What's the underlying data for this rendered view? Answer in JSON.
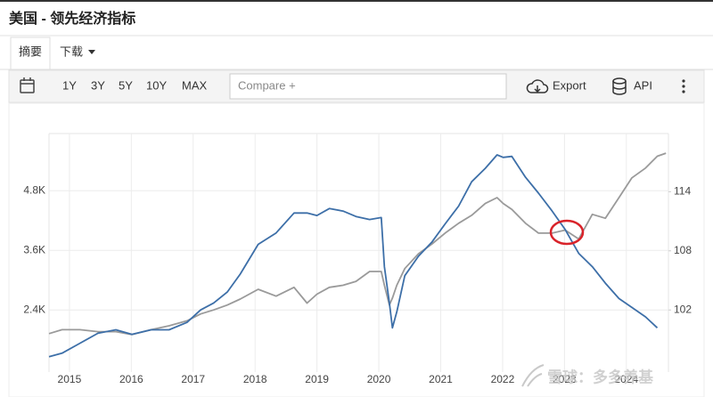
{
  "header": {
    "title": "美国 - 领先经济指标"
  },
  "tabs": [
    "摘要",
    "下载"
  ],
  "toolbar": {
    "ranges": [
      "1Y",
      "3Y",
      "5Y",
      "10Y",
      "MAX"
    ],
    "compare": "Compare +",
    "export": "Export",
    "api": "API"
  },
  "watermark": "雪球：多多养基",
  "chart_data": {
    "type": "line",
    "x": [
      2014.67,
      2014.88,
      2015.17,
      2015.46,
      2015.75,
      2016.01,
      2016.32,
      2016.61,
      2016.9,
      2017.12,
      2017.33,
      2017.55,
      2017.76,
      2018.05,
      2018.34,
      2018.63,
      2018.84,
      2019.0,
      2019.2,
      2019.42,
      2019.63,
      2019.85,
      2020.04,
      2020.09,
      2020.17,
      2020.22,
      2020.29,
      2020.42,
      2020.64,
      2020.86,
      2021.07,
      2021.29,
      2021.5,
      2021.72,
      2021.91,
      2022.01,
      2022.15,
      2022.37,
      2022.58,
      2022.8,
      2023.01,
      2023.23,
      2023.45,
      2023.66,
      2023.88,
      2024.09,
      2024.31,
      2024.5,
      2024.64
    ],
    "series": [
      {
        "color": "#3d6fa8",
        "values": [
          1460,
          1530,
          1730,
          1930,
          2000,
          1910,
          2000,
          2000,
          2150,
          2400,
          2540,
          2760,
          3120,
          3720,
          3950,
          4350,
          4350,
          4300,
          4440,
          4390,
          4280,
          4220,
          4260,
          3270,
          2540,
          2040,
          2360,
          3090,
          3480,
          3770,
          4130,
          4490,
          4980,
          5250,
          5520,
          5470,
          5490,
          5070,
          4750,
          4390,
          4020,
          3540,
          3270,
          2940,
          2630,
          2450,
          2260,
          2040,
          null
        ]
      },
      {
        "color": "#9a9a9a",
        "axis": "y2",
        "values": [
          99.6,
          100.0,
          100.0,
          99.8,
          99.8,
          99.5,
          100.0,
          100.4,
          100.9,
          101.6,
          102.0,
          102.5,
          103.1,
          104.1,
          103.4,
          104.3,
          102.7,
          103.6,
          104.3,
          104.5,
          104.9,
          105.9,
          105.9,
          104.5,
          102.5,
          103.2,
          104.5,
          106.2,
          107.7,
          108.7,
          109.8,
          110.8,
          111.6,
          112.8,
          113.4,
          112.8,
          112.2,
          110.8,
          109.8,
          109.8,
          110.1,
          109.2,
          111.7,
          111.3,
          113.4,
          115.4,
          116.4,
          117.6,
          117.9
        ]
      }
    ],
    "xlim": [
      2014.67,
      2024.68
    ],
    "xticks": [
      2015,
      2016,
      2017,
      2018,
      2019,
      2020,
      2021,
      2022,
      2023,
      2024
    ],
    "ylim": [
      1150,
      5950
    ],
    "yticks": [
      {
        "value": 2400,
        "label": "2.4K"
      },
      {
        "value": 3600,
        "label": "3.6K"
      },
      {
        "value": 4800,
        "label": "4.8K"
      }
    ],
    "y2lim": [
      95.7,
      119.9
    ],
    "y2ticks": [
      102,
      108,
      114
    ],
    "grid": true
  }
}
